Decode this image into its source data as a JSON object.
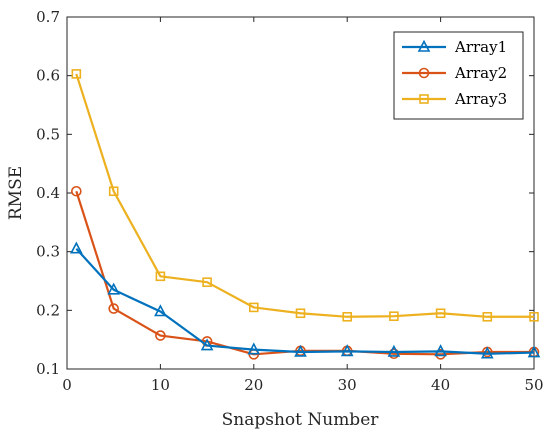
{
  "chart_data": {
    "type": "line",
    "xlabel": "Snapshot Number",
    "ylabel": "RMSE",
    "xlim": [
      0,
      50
    ],
    "ylim": [
      0.1,
      0.7
    ],
    "xticks": [
      "0",
      "10",
      "20",
      "30",
      "40",
      "50"
    ],
    "yticks": [
      "0.1",
      "0.2",
      "0.3",
      "0.4",
      "0.5",
      "0.6",
      "0.7"
    ],
    "x": [
      1,
      5,
      10,
      15,
      20,
      25,
      30,
      35,
      40,
      45,
      50
    ],
    "grid": false,
    "legend_position": "top-right",
    "series": [
      {
        "name": "Array1",
        "color": "#0072BD",
        "marker": "triangle",
        "values": [
          0.305,
          0.235,
          0.198,
          0.14,
          0.133,
          0.129,
          0.13,
          0.129,
          0.13,
          0.126,
          0.128
        ]
      },
      {
        "name": "Array2",
        "color": "#D95319",
        "marker": "circle",
        "values": [
          0.403,
          0.203,
          0.157,
          0.147,
          0.125,
          0.131,
          0.131,
          0.126,
          0.125,
          0.129,
          0.129
        ]
      },
      {
        "name": "Array3",
        "color": "#EDB120",
        "marker": "square",
        "values": [
          0.603,
          0.403,
          0.258,
          0.248,
          0.205,
          0.195,
          0.189,
          0.19,
          0.195,
          0.189,
          0.189
        ]
      }
    ]
  }
}
